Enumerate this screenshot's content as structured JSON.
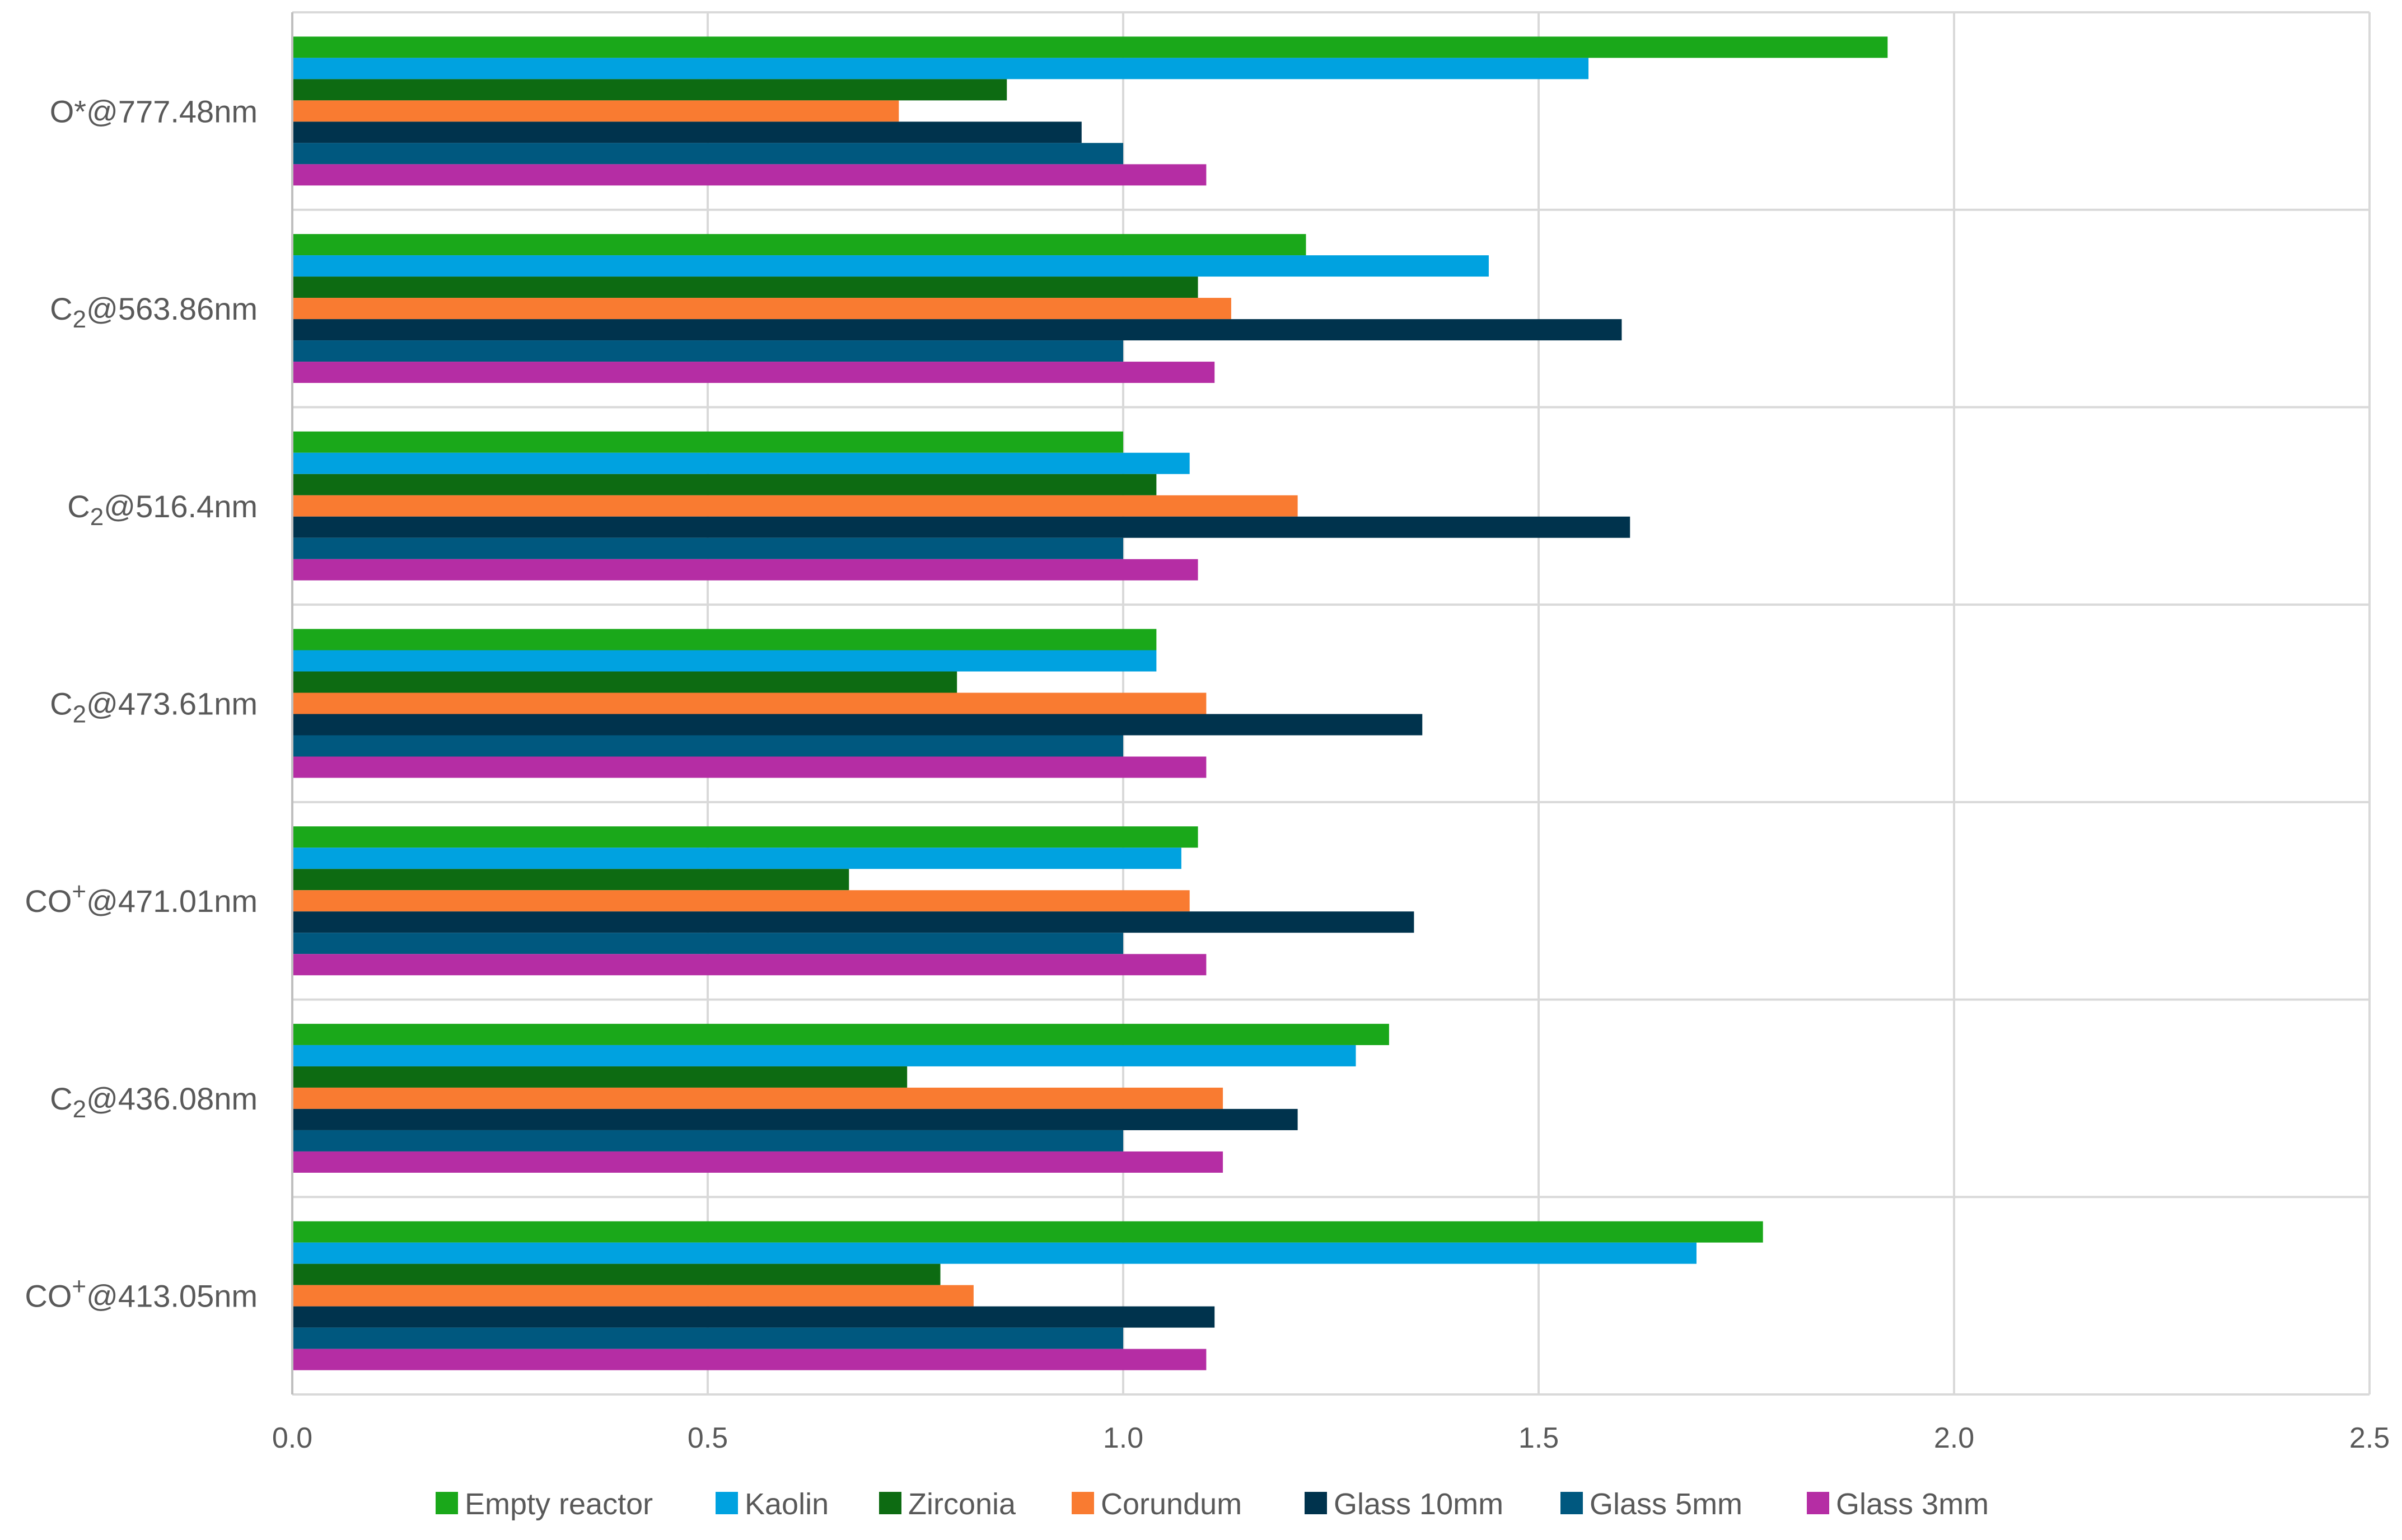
{
  "chart_data": {
    "type": "bar",
    "orientation": "horizontal",
    "title": "",
    "xlabel": "",
    "ylabel": "",
    "xlim": [
      0,
      2.5
    ],
    "xticks": [
      "0.0",
      "0.5",
      "1.0",
      "1.5",
      "2.0",
      "2.5"
    ],
    "grid": true,
    "legend_position": "bottom",
    "categories": [
      {
        "main": "O*@777.48nm",
        "sub": "",
        "sup": "",
        "post": ""
      },
      {
        "main": "C",
        "sub": "2",
        "sup": "",
        "post": "@563.86nm"
      },
      {
        "main": "C",
        "sub": "2",
        "sup": "",
        "post": "@516.4nm"
      },
      {
        "main": "C",
        "sub": "2",
        "sup": "",
        "post": "@473.61nm"
      },
      {
        "main": "CO",
        "sub": "",
        "sup": "+",
        "post": "@471.01nm"
      },
      {
        "main": "C",
        "sub": "2",
        "sup": "",
        "post": "@436.08nm"
      },
      {
        "main": "CO",
        "sub": "",
        "sup": "+",
        "post": "@413.05nm"
      }
    ],
    "series": [
      {
        "name": "Empty reactor",
        "color": "#1aa81a",
        "values": [
          1.92,
          1.22,
          1.0,
          1.04,
          1.09,
          1.32,
          1.77
        ]
      },
      {
        "name": "Kaolin",
        "color": "#00a2e0",
        "values": [
          1.56,
          1.44,
          1.08,
          1.04,
          1.07,
          1.28,
          1.69
        ]
      },
      {
        "name": "Zirconia",
        "color": "#0d6b12",
        "values": [
          0.86,
          1.09,
          1.04,
          0.8,
          0.67,
          0.74,
          0.78
        ]
      },
      {
        "name": "Corundum",
        "color": "#f97b31",
        "values": [
          0.73,
          1.13,
          1.21,
          1.1,
          1.08,
          1.12,
          0.82
        ]
      },
      {
        "name": "Glass 10mm",
        "color": "#00334d",
        "values": [
          0.95,
          1.6,
          1.61,
          1.36,
          1.35,
          1.21,
          1.11
        ]
      },
      {
        "name": "Glass 5mm",
        "color": "#00587f",
        "values": [
          1.0,
          1.0,
          1.0,
          1.0,
          1.0,
          1.0,
          1.0
        ]
      },
      {
        "name": "Glass 3mm",
        "color": "#b52da4",
        "values": [
          1.1,
          1.11,
          1.09,
          1.1,
          1.1,
          1.12,
          1.1
        ]
      }
    ],
    "gridline_color": "#d9d9d9",
    "axis_color": "#bfbfbf"
  }
}
